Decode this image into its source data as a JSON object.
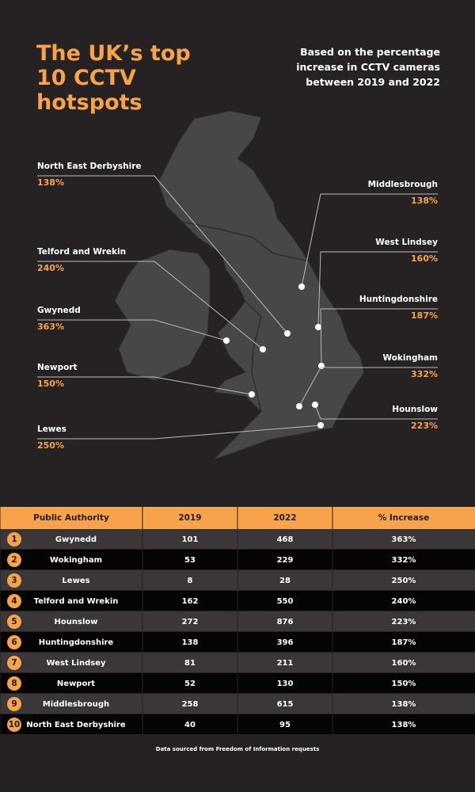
{
  "header": {
    "title": "The UK’s top 10 CCTV hotspots",
    "subtitle": "Based on the percentage increase in CCTV cameras between 2019 and 2022"
  },
  "map": {
    "labels": [
      {
        "name": "North East Derbyshire",
        "value": "138%"
      },
      {
        "name": "Telford and Wrekin",
        "value": "240%"
      },
      {
        "name": "Gwynedd",
        "value": "363%"
      },
      {
        "name": "Newport",
        "value": "150%"
      },
      {
        "name": "Lewes",
        "value": "250%"
      },
      {
        "name": "Middlesbrough",
        "value": "138%"
      },
      {
        "name": "West Lindsey",
        "value": "160%"
      },
      {
        "name": "Huntingdonshire",
        "value": "187%"
      },
      {
        "name": "Wokingham",
        "value": "332%"
      },
      {
        "name": "Hounslow",
        "value": "223%"
      }
    ]
  },
  "table": {
    "columns": [
      "Public Authority",
      "2019",
      "2022",
      "% Increase"
    ],
    "rows": [
      [
        "1",
        "Gwynedd",
        "101",
        "468",
        "363%"
      ],
      [
        "2",
        "Wokingham",
        "53",
        "229",
        "332%"
      ],
      [
        "3",
        "Lewes",
        "8",
        "28",
        "250%"
      ],
      [
        "4",
        "Telford and Wrekin",
        "162",
        "550",
        "240%"
      ],
      [
        "5",
        "Hounslow",
        "272",
        "876",
        "223%"
      ],
      [
        "6",
        "Huntingdonshire",
        "138",
        "396",
        "187%"
      ],
      [
        "7",
        "West Lindsey",
        "81",
        "211",
        "160%"
      ],
      [
        "8",
        "Newport",
        "52",
        "130",
        "150%"
      ],
      [
        "9",
        "Middlesbrough",
        "258",
        "615",
        "138%"
      ],
      [
        "10",
        "North East Derbyshire",
        "40",
        "95",
        "138%"
      ]
    ]
  },
  "footnote": "Data sourced from Freedom of Information requests"
}
